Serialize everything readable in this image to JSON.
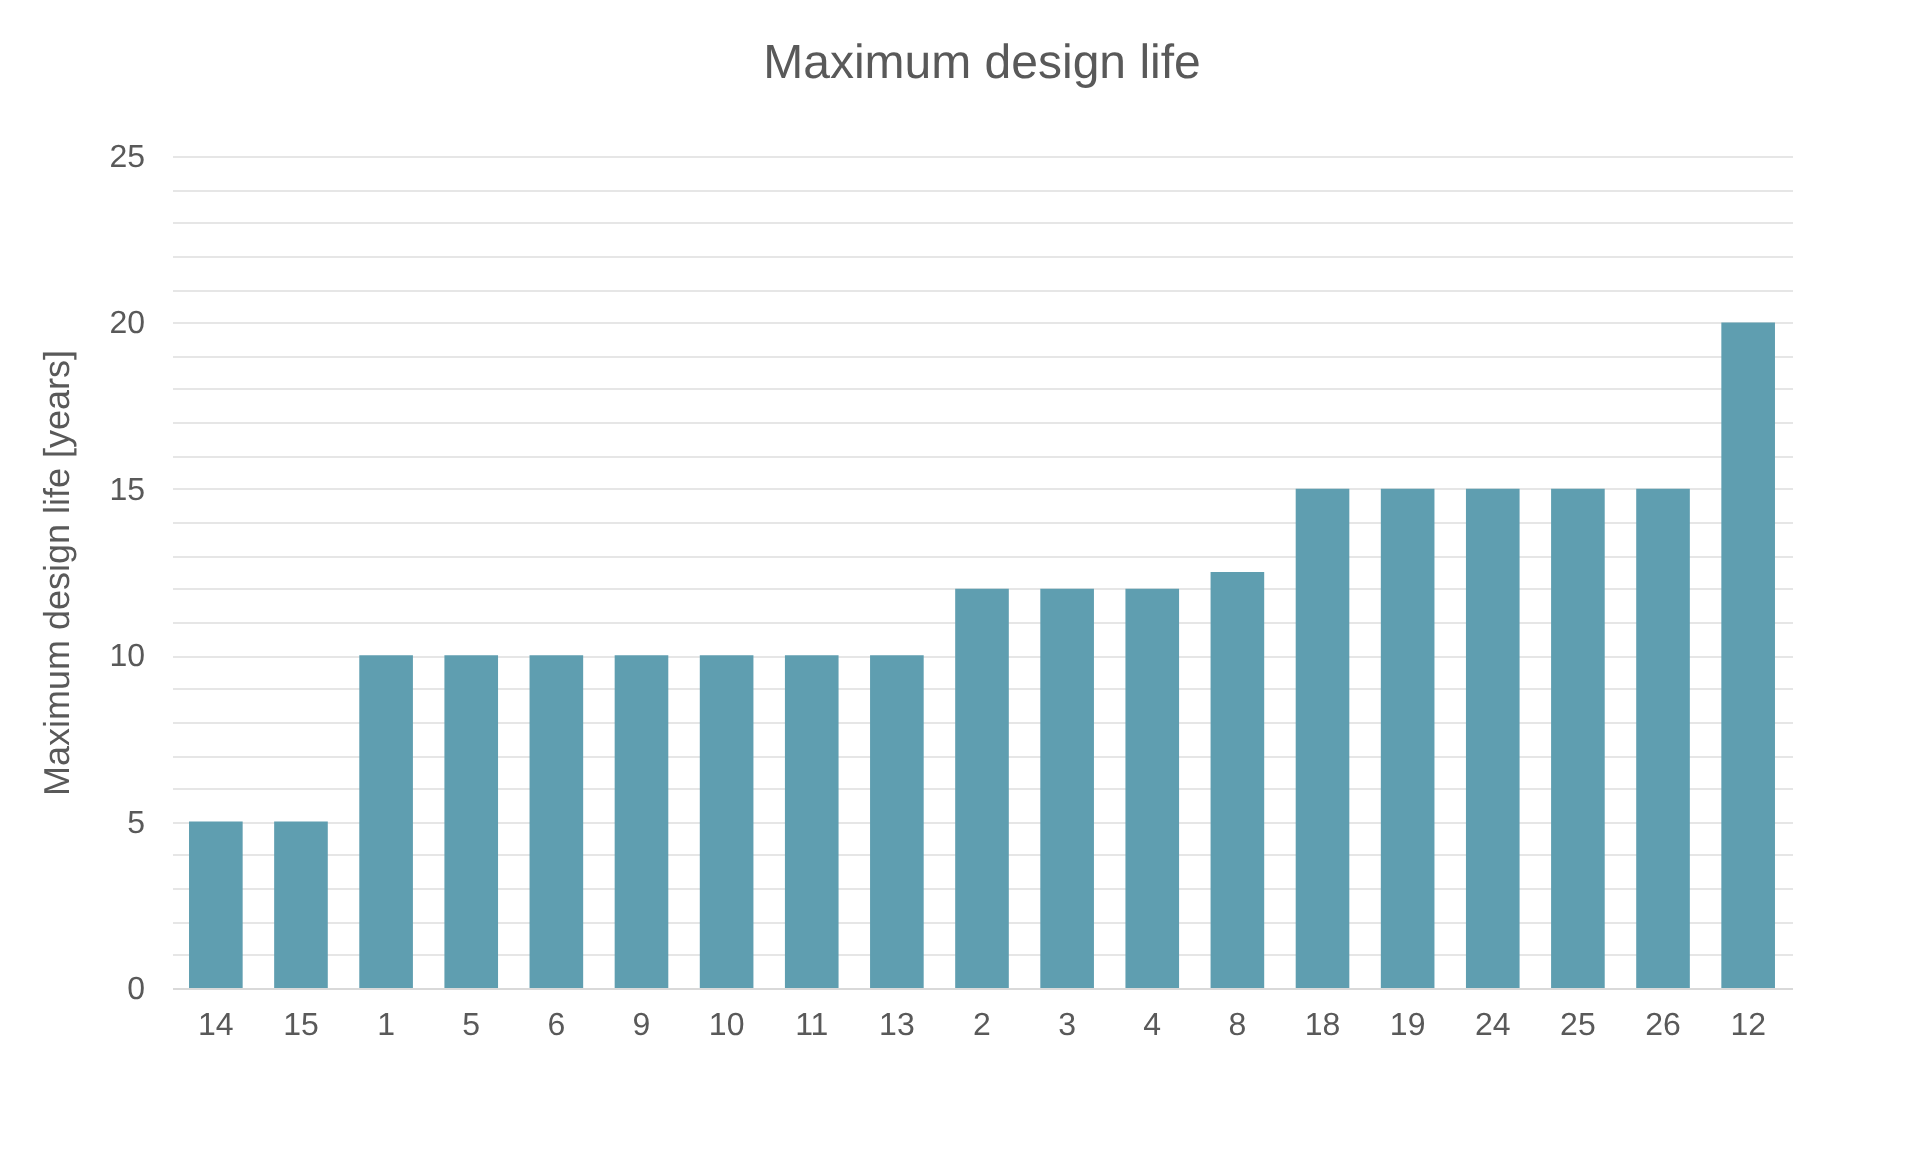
{
  "chart_data": {
    "type": "bar",
    "title": "Maximum design life",
    "ylabel": "Maximum design life [years]",
    "categories": [
      "14",
      "15",
      "1",
      "5",
      "6",
      "9",
      "10",
      "11",
      "13",
      "2",
      "3",
      "4",
      "8",
      "18",
      "19",
      "24",
      "25",
      "26",
      "12"
    ],
    "values": [
      5,
      5,
      10,
      10,
      10,
      10,
      10,
      10,
      10,
      12,
      12,
      12,
      12.5,
      15,
      15,
      15,
      15,
      15,
      20
    ],
    "color": "#5f9eb0",
    "ylim": [
      0,
      25
    ],
    "yticks": [
      0,
      {
        "value": 1,
        "label": null
      },
      {
        "value": 2,
        "label": null
      },
      {
        "value": 3,
        "label": null
      },
      {
        "value": 4,
        "label": null
      },
      5,
      {
        "value": 6,
        "label": null
      },
      {
        "value": 7,
        "label": null
      },
      {
        "value": 8,
        "label": null
      },
      {
        "value": 9,
        "label": null
      },
      10,
      {
        "value": 11,
        "label": null
      },
      {
        "value": 12,
        "label": null
      },
      {
        "value": 13,
        "label": null
      },
      {
        "value": 14,
        "label": null
      },
      15,
      {
        "value": 16,
        "label": null
      },
      {
        "value": 17,
        "label": null
      },
      {
        "value": 18,
        "label": null
      },
      {
        "value": 19,
        "label": null
      },
      20,
      {
        "value": 21,
        "label": null
      },
      {
        "value": 22,
        "label": null
      },
      {
        "value": 23,
        "label": null
      },
      {
        "value": 24,
        "label": null
      },
      25
    ],
    "grid": true
  }
}
